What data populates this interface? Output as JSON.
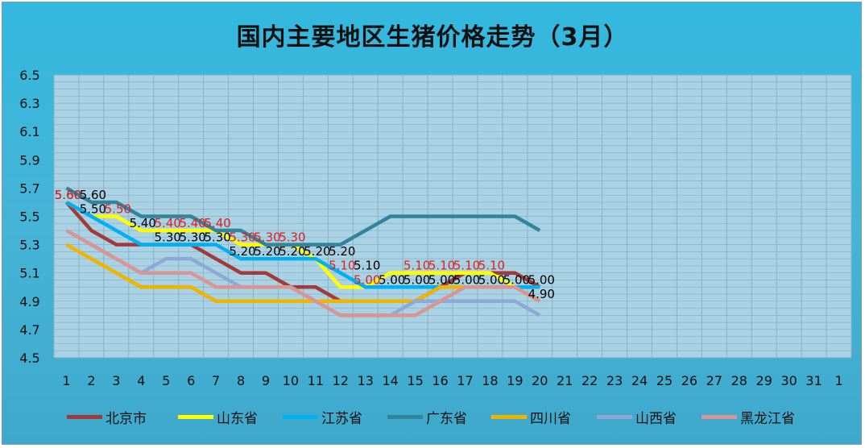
{
  "chart_data": {
    "type": "line",
    "title": "国内主要地区生猪价格走势（3月）",
    "xlabel": "",
    "ylabel": "",
    "ylim": [
      4.5,
      6.5
    ],
    "y_ticks": [
      "4.5",
      "4.7",
      "4.9",
      "5.1",
      "5.3",
      "5.5",
      "5.7",
      "5.9",
      "6.1",
      "6.3",
      "6.5"
    ],
    "x_ticks": [
      "1",
      "2",
      "3",
      "4",
      "5",
      "6",
      "7",
      "8",
      "9",
      "10",
      "11",
      "12",
      "13",
      "14",
      "15",
      "16",
      "17",
      "18",
      "19",
      "20",
      "21",
      "22",
      "23",
      "24",
      "25",
      "26",
      "27",
      "28",
      "29",
      "30",
      "31",
      "1"
    ],
    "grid": true,
    "legend_position": "bottom",
    "series": [
      {
        "name": "北京市",
        "color": "#a33a3a",
        "values": [
          5.6,
          5.4,
          5.3,
          5.3,
          5.3,
          5.3,
          5.2,
          5.1,
          5.1,
          5.0,
          5.0,
          4.9,
          4.9,
          4.9,
          4.9,
          5.0,
          5.1,
          5.1,
          5.1,
          5.0
        ]
      },
      {
        "name": "山东省",
        "color": "#ffff00",
        "values": [
          5.6,
          5.5,
          5.5,
          5.4,
          5.4,
          5.4,
          5.4,
          5.3,
          5.3,
          5.3,
          5.2,
          5.0,
          5.0,
          5.1,
          5.1,
          5.1,
          5.1,
          5.1,
          5.0,
          5.0
        ]
      },
      {
        "name": "江苏省",
        "color": "#00b0f0",
        "values": [
          5.6,
          5.5,
          5.4,
          5.3,
          5.3,
          5.3,
          5.3,
          5.2,
          5.2,
          5.2,
          5.2,
          5.1,
          5.0,
          5.0,
          5.0,
          5.0,
          5.0,
          5.0,
          5.0,
          5.0
        ]
      },
      {
        "name": "广东省",
        "color": "#31849b",
        "values": [
          5.7,
          5.6,
          5.6,
          5.5,
          5.5,
          5.5,
          5.4,
          5.4,
          5.3,
          5.3,
          5.3,
          5.3,
          5.4,
          5.5,
          5.5,
          5.5,
          5.5,
          5.5,
          5.5,
          5.4
        ]
      },
      {
        "name": "四川省",
        "color": "#f0b400",
        "values": [
          5.3,
          5.2,
          5.1,
          5.0,
          5.0,
          5.0,
          4.9,
          4.9,
          4.9,
          4.9,
          4.9,
          4.9,
          4.9,
          4.9,
          4.9,
          5.0,
          5.0,
          5.0,
          5.0,
          4.9
        ]
      },
      {
        "name": "山西省",
        "color": "#8ea9d6",
        "values": [
          5.4,
          5.3,
          5.2,
          5.1,
          5.2,
          5.2,
          5.1,
          5.0,
          5.0,
          5.0,
          4.9,
          4.8,
          4.8,
          4.8,
          4.9,
          4.9,
          4.9,
          4.9,
          4.9,
          4.8
        ]
      },
      {
        "name": "黑龙江省",
        "color": "#d99594",
        "values": [
          5.4,
          5.3,
          5.2,
          5.1,
          5.1,
          5.1,
          5.0,
          5.0,
          5.0,
          5.0,
          4.9,
          4.8,
          4.8,
          4.8,
          4.8,
          4.9,
          5.0,
          5.0,
          5.0,
          4.9
        ]
      }
    ],
    "data_labels": [
      {
        "x": 1,
        "y": 5.6,
        "text": "5.60",
        "color": "#000000"
      },
      {
        "x": 1,
        "y": 5.6,
        "text": "5.60",
        "color": "#e02020"
      },
      {
        "x": 2,
        "y": 5.6,
        "text": "5.60",
        "color": "#000000"
      },
      {
        "x": 2,
        "y": 5.5,
        "text": "5.50",
        "color": "#000000"
      },
      {
        "x": 3,
        "y": 5.5,
        "text": "5.50",
        "color": "#e02020"
      },
      {
        "x": 4,
        "y": 5.4,
        "text": "5.40",
        "color": "#000000"
      },
      {
        "x": 5,
        "y": 5.4,
        "text": "5.40",
        "color": "#e02020"
      },
      {
        "x": 6,
        "y": 5.4,
        "text": "5.40",
        "color": "#e02020"
      },
      {
        "x": 7,
        "y": 5.4,
        "text": "5.40",
        "color": "#e02020"
      },
      {
        "x": 5,
        "y": 5.3,
        "text": "5.30",
        "color": "#000000"
      },
      {
        "x": 6,
        "y": 5.3,
        "text": "5.30",
        "color": "#000000"
      },
      {
        "x": 7,
        "y": 5.3,
        "text": "5.30",
        "color": "#000000"
      },
      {
        "x": 8,
        "y": 5.3,
        "text": "5.30",
        "color": "#e02020"
      },
      {
        "x": 9,
        "y": 5.3,
        "text": "5.30",
        "color": "#e02020"
      },
      {
        "x": 10,
        "y": 5.3,
        "text": "5.30",
        "color": "#e02020"
      },
      {
        "x": 8,
        "y": 5.2,
        "text": "5.20",
        "color": "#000000"
      },
      {
        "x": 9,
        "y": 5.2,
        "text": "5.20",
        "color": "#000000"
      },
      {
        "x": 10,
        "y": 5.2,
        "text": "5.20",
        "color": "#000000"
      },
      {
        "x": 11,
        "y": 5.2,
        "text": "5.20",
        "color": "#000000"
      },
      {
        "x": 12,
        "y": 5.2,
        "text": "5.20",
        "color": "#000000"
      },
      {
        "x": 12,
        "y": 5.1,
        "text": "5.10",
        "color": "#e02020"
      },
      {
        "x": 13,
        "y": 5.1,
        "text": "5.10",
        "color": "#000000"
      },
      {
        "x": 13,
        "y": 5.0,
        "text": "5.00",
        "color": "#e02020"
      },
      {
        "x": 14,
        "y": 5.0,
        "text": "5.00",
        "color": "#000000"
      },
      {
        "x": 15,
        "y": 5.0,
        "text": "5.00",
        "color": "#000000"
      },
      {
        "x": 16,
        "y": 5.0,
        "text": "5.00",
        "color": "#000000"
      },
      {
        "x": 17,
        "y": 5.0,
        "text": "5.00",
        "color": "#000000"
      },
      {
        "x": 18,
        "y": 5.0,
        "text": "5.00",
        "color": "#000000"
      },
      {
        "x": 19,
        "y": 5.0,
        "text": "5.00",
        "color": "#000000"
      },
      {
        "x": 20,
        "y": 5.0,
        "text": "5.00",
        "color": "#000000"
      },
      {
        "x": 15,
        "y": 5.1,
        "text": "5.10",
        "color": "#e02020"
      },
      {
        "x": 16,
        "y": 5.1,
        "text": "5.10",
        "color": "#e02020"
      },
      {
        "x": 17,
        "y": 5.1,
        "text": "5.10",
        "color": "#e02020"
      },
      {
        "x": 18,
        "y": 5.1,
        "text": "5.10",
        "color": "#e02020"
      },
      {
        "x": 20,
        "y": 4.9,
        "text": "4.90",
        "color": "#000000"
      }
    ]
  }
}
